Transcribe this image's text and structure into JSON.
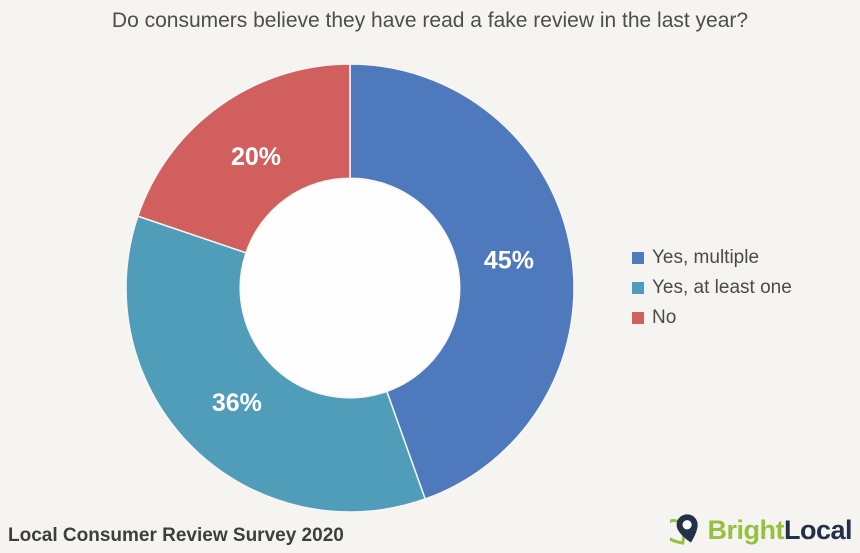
{
  "title": "Do consumers believe they have read a fake review in the last year?",
  "chart_data": {
    "type": "pie",
    "subtype": "donut",
    "categories": [
      "Yes, multiple",
      "Yes, at least one",
      "No"
    ],
    "values": [
      45,
      36,
      20
    ],
    "labels": [
      "45%",
      "36%",
      "20%"
    ],
    "unit": "%",
    "colors": [
      "#4e79bc",
      "#4f9db8",
      "#d15f5e"
    ],
    "title": "Do consumers believe they have read a fake review in the last year?",
    "legend_position": "right",
    "start_angle_deg": 0,
    "direction": "clockwise",
    "donut_hole_ratio": 0.49,
    "label_radius_ratio": 0.72
  },
  "legend": {
    "items": [
      {
        "label": "Yes, multiple",
        "color": "#4e79bc"
      },
      {
        "label": "Yes, at least one",
        "color": "#4f9db8"
      },
      {
        "label": "No",
        "color": "#d15f5e"
      }
    ]
  },
  "footer": {
    "source": "Local Consumer Review Survey 2020"
  },
  "logo": {
    "text_primary": "Bright",
    "text_secondary": "Local",
    "color_primary": "#96c13e",
    "color_secondary": "#22304a"
  },
  "colors": {
    "background": "#f5f4f1",
    "hole": "#fdfdfd",
    "separator": "#f7f6f4",
    "percent_label_text": "#ffffff",
    "title_text": "#4d4d4d"
  }
}
